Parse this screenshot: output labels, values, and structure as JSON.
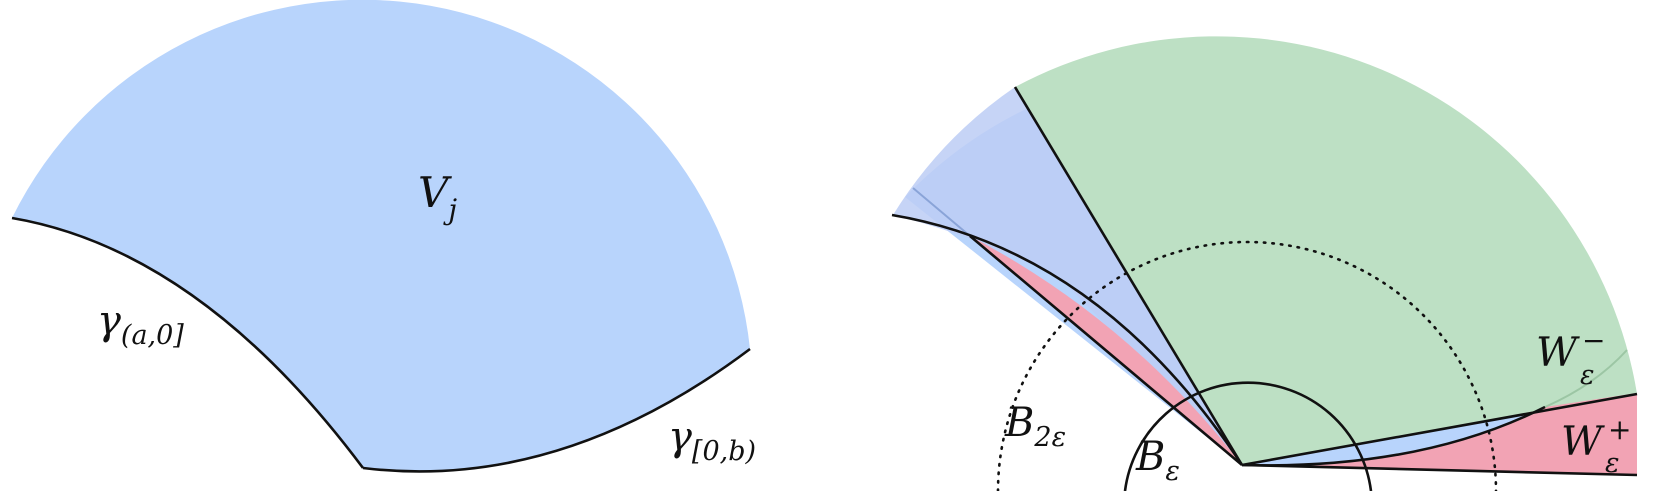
{
  "colors": {
    "blue_region": "#b8d4fc",
    "green_region": "#bde0c4",
    "pink_region": "#f2a3b4",
    "outline": "#111111"
  },
  "left_panel": {
    "region_label": {
      "main": "V",
      "sub": "j"
    },
    "curve_left_label": {
      "main": "γ",
      "sub": "(a,0]"
    },
    "curve_right_label": {
      "main": "γ",
      "sub": "[0,b)"
    }
  },
  "right_panel": {
    "ball_large_label": {
      "main": "B",
      "sub": "2ε"
    },
    "ball_small_label": {
      "main": "B",
      "sub": "ε"
    },
    "wedge_minus_label": {
      "main": "W",
      "sub": "ε",
      "sup": "−"
    },
    "wedge_plus_label": {
      "main": "W",
      "sub": "ε",
      "sup": "+"
    }
  }
}
